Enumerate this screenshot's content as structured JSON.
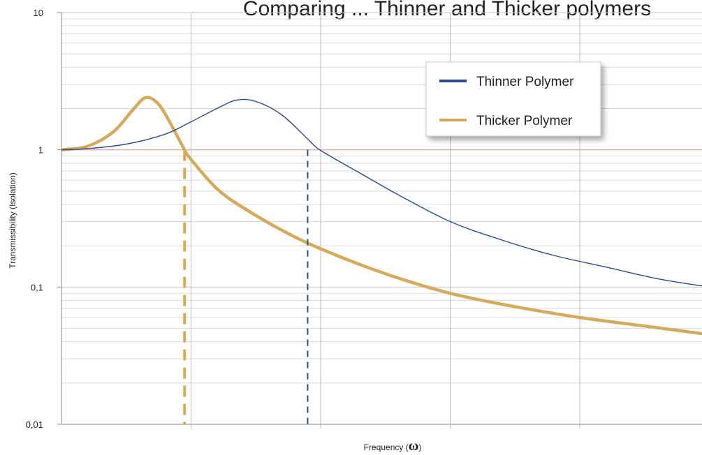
{
  "chart_data": {
    "type": "line",
    "title": "Comparing ... Thinner and Thicker polymers",
    "xlabel_prefix": "Frequency (",
    "xlabel_symbol": "ω",
    "xlabel_suffix": ")",
    "ylabel": "Transmissibility (Isolation)",
    "yscale": "log",
    "ylim": [
      0.01,
      10
    ],
    "xlim": [
      0,
      5
    ],
    "yticks": [
      "10",
      "1",
      "0,1",
      "0,01"
    ],
    "ytick_values": [
      10,
      1,
      0.1,
      0.01
    ],
    "x_gridlines": [
      1,
      2,
      3,
      4,
      5
    ],
    "grid": true,
    "legend_position": "top-right",
    "reference_line": {
      "y": 1,
      "color": "#e8a0a0"
    },
    "series": [
      {
        "name": "Thinner Polymer",
        "color": "#2e4a8a",
        "x": [
          0,
          0.2,
          0.5,
          0.8,
          1.0,
          1.2,
          1.35,
          1.5,
          1.7,
          1.9,
          2.0,
          2.3,
          2.6,
          3.0,
          3.4,
          3.8,
          4.2,
          4.6,
          5.0
        ],
        "y": [
          1.0,
          1.02,
          1.1,
          1.3,
          1.6,
          2.0,
          2.3,
          2.25,
          1.8,
          1.2,
          0.99,
          0.68,
          0.47,
          0.3,
          0.22,
          0.17,
          0.14,
          0.115,
          0.1
        ],
        "cutoff_x": 1.9
      },
      {
        "name": "Thicker Polymer",
        "color": "#d4aa5e",
        "x": [
          0,
          0.2,
          0.4,
          0.55,
          0.65,
          0.75,
          0.85,
          0.95,
          1.0,
          1.2,
          1.4,
          1.7,
          2.0,
          2.5,
          3.0,
          3.5,
          4.0,
          4.5,
          5.0
        ],
        "y": [
          1.0,
          1.06,
          1.35,
          1.95,
          2.4,
          2.15,
          1.5,
          1.0,
          0.85,
          0.52,
          0.38,
          0.26,
          0.19,
          0.125,
          0.09,
          0.072,
          0.06,
          0.052,
          0.045
        ],
        "cutoff_x": 0.95
      }
    ]
  }
}
